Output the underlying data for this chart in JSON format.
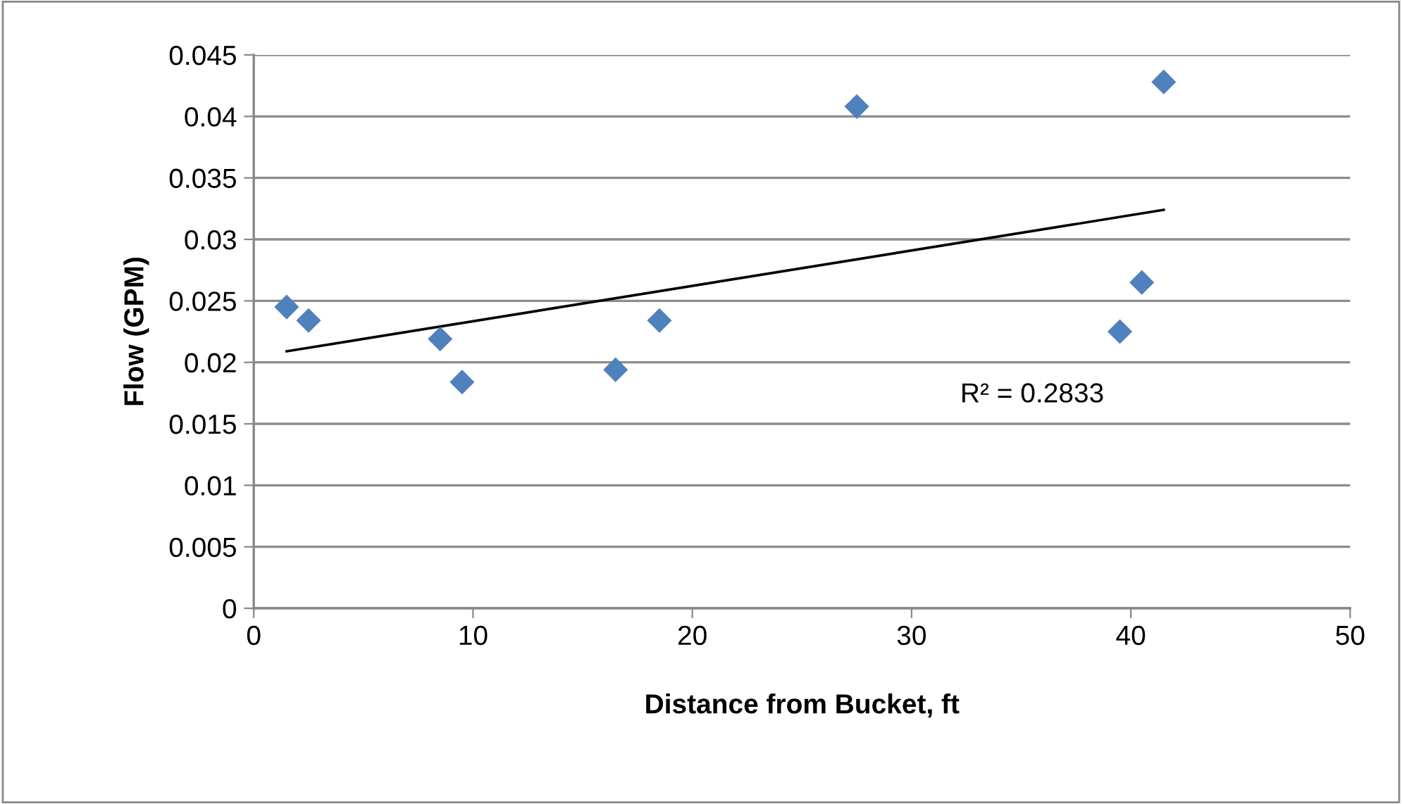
{
  "chart_data": {
    "type": "scatter",
    "xlabel": "Distance from Bucket, ft",
    "ylabel": "Flow (GPM)",
    "series": [
      {
        "color": "#4f81bd",
        "marker": "diamond",
        "x": [
          1.5,
          2.5,
          8.5,
          9.5,
          16.5,
          18.5,
          27.5,
          39.5,
          40.5,
          41.5
        ],
        "values": [
          0.0245,
          0.0234,
          0.0219,
          0.0184,
          0.0194,
          0.0234,
          0.0408,
          0.0225,
          0.0265,
          0.0428
        ]
      },
      {
        "type": "line",
        "color": "#000000",
        "x": [
          1.5,
          41.5
        ],
        "values": [
          0.0209,
          0.0324
        ]
      }
    ],
    "annotations": [
      "R² = 0.2833"
    ],
    "xlim": [
      0,
      50
    ],
    "xticks": [
      0,
      10,
      20,
      30,
      40,
      50
    ],
    "ylim": [
      0,
      0.045
    ],
    "yticks": [
      {
        "value": 0,
        "label": "0"
      },
      0.005,
      0.01,
      0.015,
      0.02,
      0.025,
      0.03,
      0.035,
      0.04,
      0.045
    ],
    "grid": "y",
    "legend": false
  }
}
